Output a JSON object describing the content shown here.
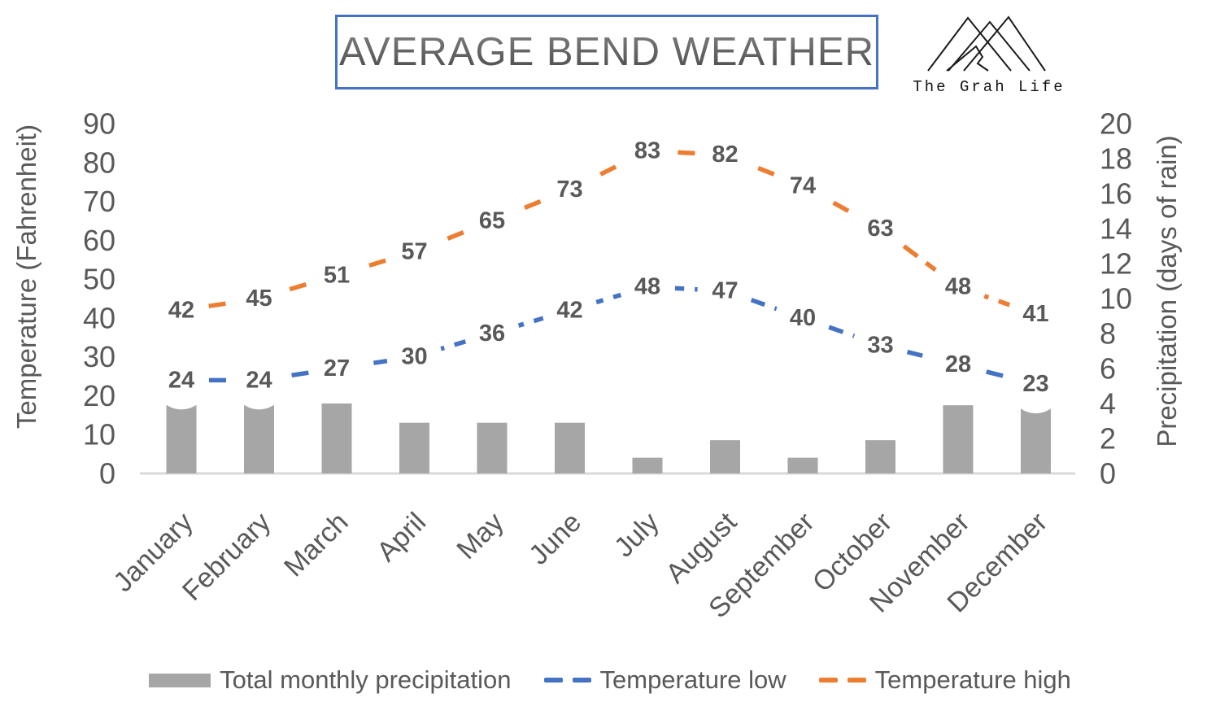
{
  "header": {
    "title": "AVERAGE BEND WEATHER",
    "logo_text": "The Grah Life"
  },
  "chart_data": {
    "type": "combo",
    "categories": [
      "January",
      "February",
      "March",
      "April",
      "May",
      "June",
      "July",
      "August",
      "September",
      "October",
      "November",
      "December"
    ],
    "series": [
      {
        "name": "Total monthly precipitation",
        "type": "bar",
        "axis": "right",
        "color": "#A6A6A6",
        "values": [
          3.9,
          3.9,
          4.0,
          2.9,
          2.9,
          2.9,
          0.9,
          1.9,
          0.9,
          1.9,
          3.9,
          3.7
        ]
      },
      {
        "name": "Temperature low",
        "type": "line",
        "axis": "left",
        "color": "#4472C4",
        "dashed": true,
        "values": [
          24,
          24,
          27,
          30,
          36,
          42,
          48,
          47,
          40,
          33,
          28,
          23
        ]
      },
      {
        "name": "Temperature high",
        "type": "line",
        "axis": "left",
        "color": "#ED7D31",
        "dashed": true,
        "values": [
          42,
          45,
          51,
          57,
          65,
          73,
          83,
          82,
          74,
          63,
          48,
          41
        ]
      }
    ],
    "left_axis": {
      "label": "Temperature (Fahrenheit)",
      "min": 0,
      "max": 90,
      "step": 10
    },
    "right_axis": {
      "label": "Precipitation (days of rain)",
      "min": 0,
      "max": 20,
      "step": 2
    },
    "legend_position": "bottom",
    "grid": false,
    "data_labels_on_lines": true,
    "colors": {
      "axis_text": "#595959",
      "axis_line": "#D9D9D9",
      "title_border": "#4472C4"
    }
  }
}
